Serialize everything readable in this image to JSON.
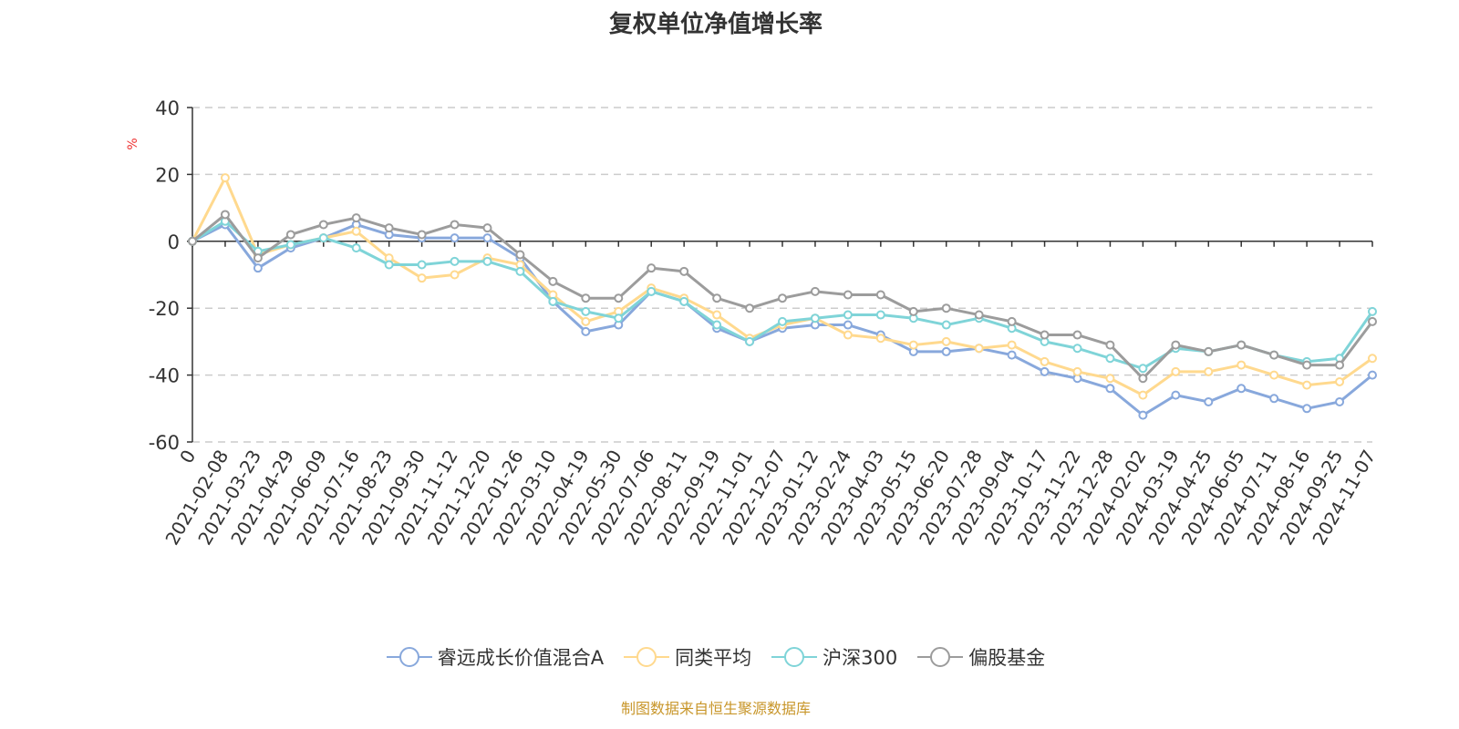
{
  "chart_data": {
    "type": "line",
    "title": "复权单位净值增长率",
    "ylabel": "%",
    "xlabel": "",
    "ylim": [
      -60,
      40
    ],
    "yticks": [
      40,
      20,
      0,
      -20,
      -40,
      -60
    ],
    "grid": true,
    "legend_position": "bottom",
    "categories": [
      "0",
      "2021-02-08",
      "2021-03-23",
      "2021-04-29",
      "2021-06-09",
      "2021-07-16",
      "2021-08-23",
      "2021-09-30",
      "2021-11-12",
      "2021-12-20",
      "2022-01-26",
      "2022-03-10",
      "2022-04-19",
      "2022-05-30",
      "2022-07-06",
      "2022-08-11",
      "2022-09-19",
      "2022-11-01",
      "2022-12-07",
      "2023-01-12",
      "2023-02-24",
      "2023-04-03",
      "2023-05-15",
      "2023-06-20",
      "2023-07-28",
      "2023-09-04",
      "2023-10-17",
      "2023-11-22",
      "2023-12-28",
      "2024-02-02",
      "2024-03-19",
      "2024-04-25",
      "2024-06-05",
      "2024-07-11",
      "2024-08-16",
      "2024-09-25",
      "2024-11-07"
    ],
    "series": [
      {
        "name": "睿远成长价值混合A",
        "color": "#88a8dc",
        "values": [
          0,
          5,
          -8,
          -2,
          1,
          5,
          2,
          1,
          1,
          1,
          -5,
          -18,
          -27,
          -25,
          -15,
          -18,
          -26,
          -30,
          -26,
          -25,
          -25,
          -28,
          -33,
          -33,
          -32,
          -34,
          -39,
          -41,
          -44,
          -52,
          -46,
          -48,
          -44,
          -47,
          -50,
          -48,
          -40
        ]
      },
      {
        "name": "同类平均",
        "color": "#ffd98e",
        "values": [
          0,
          19,
          -4,
          -1,
          1,
          3,
          -5,
          -11,
          -10,
          -5,
          -7,
          -16,
          -24,
          -21,
          -14,
          -17,
          -22,
          -29,
          -25,
          -23,
          -28,
          -29,
          -31,
          -30,
          -32,
          -31,
          -36,
          -39,
          -41,
          -46,
          -39,
          -39,
          -37,
          -40,
          -43,
          -42,
          -35
        ]
      },
      {
        "name": "沪深300",
        "color": "#7fd4d8",
        "values": [
          0,
          6,
          -3,
          -1,
          1,
          -2,
          -7,
          -7,
          -6,
          -6,
          -9,
          -18,
          -21,
          -23,
          -15,
          -18,
          -25,
          -30,
          -24,
          -23,
          -22,
          -22,
          -23,
          -25,
          -23,
          -26,
          -30,
          -32,
          -35,
          -38,
          -32,
          -33,
          -31,
          -34,
          -36,
          -35,
          -21
        ]
      },
      {
        "name": "偏股基金",
        "color": "#9c9c9c",
        "values": [
          0,
          8,
          -5,
          2,
          5,
          7,
          4,
          2,
          5,
          4,
          -4,
          -12,
          -17,
          -17,
          -8,
          -9,
          -17,
          -20,
          -17,
          -15,
          -16,
          -16,
          -21,
          -20,
          -22,
          -24,
          -28,
          -28,
          -31,
          -41,
          -31,
          -33,
          -31,
          -34,
          -37,
          -37,
          -24
        ]
      }
    ]
  },
  "footer": "制图数据来自恒生聚源数据库"
}
